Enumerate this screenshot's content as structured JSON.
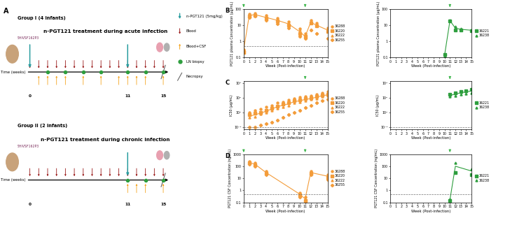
{
  "panel_labels": [
    "A",
    "B",
    "C",
    "D"
  ],
  "diagram": {
    "time_label": "Time (weeks)",
    "virus": "SHIVSF162P3",
    "legend": {
      "treatment": "n-PGT121 (5mg/kg)",
      "blood": "Blood",
      "blood_csf": "Blood+CSF",
      "ln_biopsy": "LN biopsy",
      "necropsy": "Necropsy"
    },
    "groups": [
      {
        "title": "Group I (4 infants)",
        "subtitle": "n-PGT121 treatment during acute infection",
        "xlim": [
          0,
          15
        ],
        "time_ticks": [
          0,
          11,
          15
        ],
        "treatment_weeks": [
          0,
          11
        ],
        "blood_weeks": [
          0,
          1,
          2,
          3,
          4,
          5,
          6,
          7,
          8,
          9,
          10,
          11,
          12,
          13,
          14,
          15
        ],
        "blood_csf_weeks": [
          1,
          2,
          3,
          4,
          6,
          8,
          10,
          11,
          12,
          13,
          15
        ],
        "ln_biopsy_weeks": [
          2,
          4,
          6,
          8,
          11,
          13,
          15
        ],
        "necropsy_week": 15
      },
      {
        "title": "Group II (2 infants)",
        "subtitle": "n-PGT121 treatment during chronic infection",
        "xlim": [
          0,
          15
        ],
        "time_ticks": [
          0,
          11,
          15
        ],
        "treatment_weeks": [
          11
        ],
        "blood_weeks": [
          0,
          1,
          2,
          3,
          4,
          5,
          6,
          7,
          8,
          9,
          10,
          11,
          12,
          13,
          14,
          15
        ],
        "blood_csf_weeks": [
          11,
          12,
          13,
          15
        ],
        "ln_biopsy_weeks": [
          11,
          13,
          15
        ],
        "necropsy_week": 15
      }
    ]
  },
  "chart_data": [
    {
      "type": "scatter",
      "log": "y",
      "x_label": "Week (Post-infection)",
      "y_label": "PGT121 plasma Concentration (µg/mL)",
      "x": [
        0,
        1,
        2,
        4,
        6,
        8,
        10,
        11,
        12,
        13,
        15
      ],
      "xlim": [
        0,
        15
      ],
      "xticks": [
        0,
        1,
        2,
        3,
        4,
        5,
        6,
        7,
        8,
        9,
        10,
        11,
        12,
        13,
        14,
        15
      ],
      "ylim": [
        0.1,
        100
      ],
      "yticks": [
        0.1,
        1,
        10,
        100
      ],
      "reference_line": 0.5,
      "treatment_weeks": [
        0,
        11
      ],
      "legend": "center left",
      "series": [
        {
          "name": "36288",
          "color": "#f39c3a",
          "marker": "circle",
          "values": [
            0.3,
            50,
            55,
            40,
            28,
            16,
            6,
            3,
            20,
            13,
            7
          ]
        },
        {
          "name": "36220",
          "color": "#f39c3a",
          "marker": "square",
          "values": [
            0.2,
            35,
            40,
            28,
            18,
            10,
            3,
            2,
            14,
            9,
            4
          ]
        },
        {
          "name": "36222",
          "color": "#f39c3a",
          "marker": "triangle",
          "values": [
            0.3,
            45,
            50,
            30,
            22,
            14,
            5,
            2.5,
            16,
            11,
            6
          ]
        },
        {
          "name": "36255",
          "color": "#f39c3a",
          "marker": "diamond",
          "values": [
            0.25,
            30,
            35,
            20,
            12,
            7,
            2,
            1.5,
            5,
            3,
            1.5
          ]
        },
        {
          "type": "line",
          "color": "#f39c3a",
          "line_style": "solid",
          "values": [
            0.3,
            40,
            45,
            30,
            20,
            12,
            4,
            2,
            15,
            10,
            5
          ]
        }
      ]
    },
    {
      "type": "scatter",
      "log": "y",
      "x_label": "Week (Post-infection)",
      "y_label": "PGT121 plasma Concentration (µg/mL)",
      "x": [
        10,
        11,
        12,
        13,
        15
      ],
      "xlim": [
        0,
        15
      ],
      "xticks": [
        0,
        1,
        2,
        3,
        4,
        5,
        6,
        7,
        8,
        9,
        10,
        11,
        12,
        13,
        14,
        15
      ],
      "ylim": [
        0.1,
        100
      ],
      "yticks": [
        0.1,
        1,
        10,
        100
      ],
      "treatment_weeks": [
        11
      ],
      "legend": "center left",
      "series": [
        {
          "name": "36221",
          "color": "#2e9e3e",
          "marker": "square",
          "values": [
            0.15,
            18,
            5,
            5,
            4.5
          ]
        },
        {
          "name": "36238",
          "color": "#2e9e3e",
          "marker": "triangle",
          "values": [
            0.12,
            20,
            8,
            6,
            5
          ]
        },
        {
          "type": "line",
          "color": "#2e9e3e",
          "line_style": "solid",
          "values": [
            0.13,
            19,
            6.5,
            5.5,
            4.8
          ]
        }
      ]
    },
    {
      "type": "scatter",
      "log": "y",
      "x_label": "Week (Post-infection)",
      "y_label": "IC50 (µg/mL)",
      "x": [
        1,
        2,
        3,
        4,
        5,
        6,
        7,
        8,
        9,
        10,
        11,
        12,
        13,
        14,
        15
      ],
      "xlim": [
        0,
        15
      ],
      "xticks": [
        0,
        1,
        2,
        3,
        4,
        5,
        6,
        7,
        8,
        9,
        10,
        11,
        12,
        13,
        14,
        15
      ],
      "ylim": [
        0.005,
        20000
      ],
      "yticks": [
        {
          "value": 0.01,
          "label": "10⁻²"
        },
        {
          "value": 1,
          "label": "10⁰"
        },
        {
          "value": 100,
          "label": "10²"
        },
        {
          "value": 10000,
          "label": "10⁴"
        }
      ],
      "reference_line": 0.01,
      "treatment_weeks": [
        11
      ],
      "legend": "center left",
      "series": [
        {
          "name": "36288",
          "color": "#f39c3a",
          "marker": "circle",
          "values": [
            1,
            2,
            3,
            6,
            10,
            20,
            30,
            50,
            80,
            120,
            150,
            200,
            300,
            500,
            800
          ]
        },
        {
          "name": "36220",
          "color": "#f39c3a",
          "marker": "square",
          "values": [
            0.5,
            0.8,
            1,
            2,
            4,
            8,
            15,
            20,
            40,
            50,
            80,
            100,
            150,
            250,
            300
          ]
        },
        {
          "name": "36222",
          "color": "#f39c3a",
          "marker": "triangle",
          "values": [
            0.2,
            0.3,
            0.6,
            1,
            2,
            4,
            6,
            10,
            20,
            25,
            40,
            60,
            80,
            150,
            200
          ]
        },
        {
          "name": "36255",
          "color": "#f39c3a",
          "marker": "diamond",
          "values": [
            0.01,
            0.01,
            0.02,
            0.03,
            0.05,
            0.1,
            0.2,
            0.5,
            1,
            2,
            5,
            10,
            20,
            40,
            60
          ]
        },
        {
          "type": "line",
          "color": "#f39c3a",
          "line_style": "solid",
          "values": [
            0.3,
            0.5,
            0.8,
            1.5,
            3,
            6,
            10,
            15,
            30,
            40,
            60,
            80,
            120,
            200,
            250
          ]
        }
      ]
    },
    {
      "type": "scatter",
      "log": "y",
      "x_label": "Week (Post-infection)",
      "y_label": "IC50 (µg/mL)",
      "x": [
        11,
        12,
        13,
        14,
        15
      ],
      "xlim": [
        0,
        15
      ],
      "xticks": [
        0,
        1,
        2,
        3,
        4,
        5,
        6,
        7,
        8,
        9,
        10,
        11,
        12,
        13,
        14,
        15
      ],
      "ylim": [
        0.005,
        20000
      ],
      "yticks": [
        {
          "value": 0.01,
          "label": "10⁻²"
        },
        {
          "value": 1,
          "label": "10⁰"
        },
        {
          "value": 100,
          "label": "10²"
        },
        {
          "value": 10000,
          "label": "10⁴"
        }
      ],
      "reference_line": 0.01,
      "treatment_weeks": [
        11
      ],
      "legend": "center left",
      "series": [
        {
          "name": "36221",
          "color": "#2e9e3e",
          "marker": "square",
          "values": [
            300,
            500,
            800,
            1000,
            1500
          ]
        },
        {
          "name": "36238",
          "color": "#2e9e3e",
          "marker": "triangle",
          "values": [
            150,
            200,
            300,
            400,
            500
          ]
        },
        {
          "type": "line",
          "color": "#2e9e3e",
          "line_style": "solid",
          "values": [
            220,
            320,
            500,
            650,
            900
          ]
        }
      ]
    },
    {
      "type": "scatter",
      "log": "y",
      "x_label": "Week (Post-infection)",
      "y_label": "PGT121 CSF Concentration (ng/mL)",
      "x": [
        1,
        2,
        4,
        10,
        11,
        12,
        15
      ],
      "xlim": [
        0,
        15
      ],
      "xticks": [
        0,
        1,
        2,
        3,
        4,
        5,
        6,
        7,
        8,
        9,
        10,
        11,
        12,
        13,
        14,
        15
      ],
      "ylim": [
        0.1,
        1000
      ],
      "yticks": [
        0.1,
        1,
        10,
        100,
        1000
      ],
      "reference_line": 0.5,
      "treatment_weeks": [
        0,
        11
      ],
      "legend": "center left",
      "series": [
        {
          "name": "36288",
          "color": "#f39c3a",
          "marker": "circle",
          "values": [
            250,
            180,
            40,
            0.6,
            0.3,
            40,
            20
          ]
        },
        {
          "name": "36220",
          "color": "#f39c3a",
          "marker": "square",
          "values": [
            180,
            130,
            25,
            0.4,
            0.15,
            25,
            12
          ]
        },
        {
          "name": "36222",
          "color": "#f39c3a",
          "marker": "triangle",
          "values": [
            220,
            160,
            35,
            0.5,
            0.2,
            35,
            18
          ]
        },
        {
          "name": "36255",
          "color": "#f39c3a",
          "marker": "diamond",
          "values": [
            150,
            100,
            20,
            0.3,
            0.12,
            20,
            8
          ]
        },
        {
          "type": "line",
          "color": "#f39c3a",
          "line_style": "solid",
          "values": [
            200,
            150,
            30,
            0.5,
            0.2,
            30,
            15
          ]
        }
      ]
    },
    {
      "type": "scatter",
      "log": "y",
      "x_label": "Week (Post-infection)",
      "y_label": "PGT121 CSF Concentration (ng/mL)",
      "x": [
        11,
        12,
        15
      ],
      "xlim": [
        0,
        15
      ],
      "xticks": [
        0,
        1,
        2,
        3,
        4,
        5,
        6,
        7,
        8,
        9,
        10,
        11,
        12,
        13,
        14,
        15
      ],
      "ylim": [
        0.1,
        1000
      ],
      "yticks": [
        0.1,
        1,
        10,
        100,
        1000
      ],
      "reference_line": 0.5,
      "treatment_weeks": [
        11
      ],
      "legend": "center left",
      "series": [
        {
          "name": "36221",
          "color": "#2e9e3e",
          "marker": "square",
          "values": [
            0.15,
            30,
            20
          ]
        },
        {
          "name": "36238",
          "color": "#2e9e3e",
          "marker": "triangle",
          "values": [
            0.2,
            200,
            60
          ]
        },
        {
          "type": "line",
          "color": "#2e9e3e",
          "line_style": "solid",
          "values": [
            0.17,
            100,
            40
          ]
        }
      ]
    }
  ]
}
